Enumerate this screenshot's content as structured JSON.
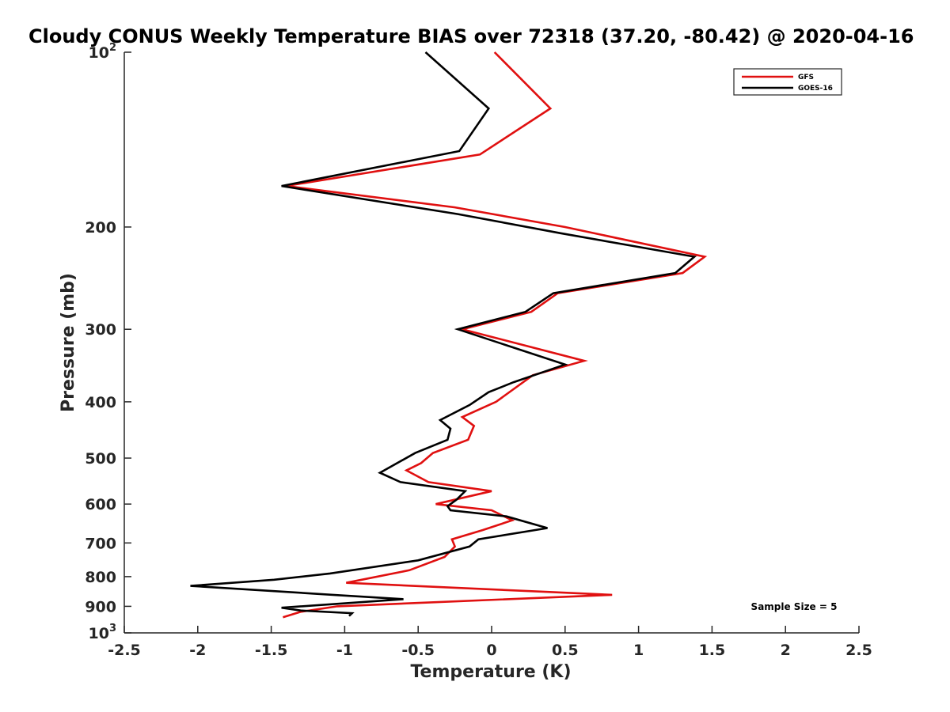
{
  "chart_data": {
    "type": "line",
    "title": "Cloudy CONUS Weekly Temperature BIAS over 72318 (37.20, -80.42) @ 2020-04-16",
    "xlabel": "Temperature (K)",
    "ylabel": "Pressure (mb)",
    "xlim": [
      -2.5,
      2.5
    ],
    "ylim": [
      100,
      1000
    ],
    "y_scale": "log",
    "y_reversed": true,
    "x_ticks": [
      "-2.5",
      "-2",
      "-1.5",
      "-1",
      "-0.5",
      "0",
      "0.5",
      "1",
      "1.5",
      "2",
      "2.5"
    ],
    "y_ticks": [
      {
        "value": 100,
        "base": "10",
        "exp": "2"
      },
      {
        "value": 200,
        "label": "200"
      },
      {
        "value": 300,
        "label": "300"
      },
      {
        "value": 400,
        "label": "400"
      },
      {
        "value": 500,
        "label": "500"
      },
      {
        "value": 600,
        "label": "600"
      },
      {
        "value": 700,
        "label": "700"
      },
      {
        "value": 800,
        "label": "800"
      },
      {
        "value": 900,
        "label": "900"
      },
      {
        "value": 1000,
        "base": "10",
        "exp": "3"
      }
    ],
    "series": [
      {
        "name": "GFS",
        "color": "#e01010",
        "points": [
          [
            0.02,
            100
          ],
          [
            0.4,
            125
          ],
          [
            -0.08,
            150
          ],
          [
            -1.4,
            170
          ],
          [
            -0.25,
            185
          ],
          [
            0.5,
            200
          ],
          [
            1.45,
            225
          ],
          [
            1.3,
            240
          ],
          [
            0.45,
            260
          ],
          [
            0.27,
            280
          ],
          [
            -0.2,
            300
          ],
          [
            0.63,
            340
          ],
          [
            0.28,
            360
          ],
          [
            0.03,
            400
          ],
          [
            -0.2,
            425
          ],
          [
            -0.12,
            440
          ],
          [
            -0.16,
            465
          ],
          [
            -0.4,
            490
          ],
          [
            -0.48,
            510
          ],
          [
            -0.58,
            525
          ],
          [
            -0.43,
            550
          ],
          [
            0.0,
            570
          ],
          [
            -0.38,
            600
          ],
          [
            0.0,
            615
          ],
          [
            0.14,
            640
          ],
          [
            -0.06,
            665
          ],
          [
            -0.27,
            690
          ],
          [
            -0.25,
            710
          ],
          [
            -0.32,
            740
          ],
          [
            -0.56,
            780
          ],
          [
            -0.99,
            820
          ],
          [
            0.38,
            850
          ],
          [
            0.82,
            860
          ],
          [
            -1.05,
            900
          ],
          [
            -1.3,
            920
          ],
          [
            -1.42,
            940
          ]
        ]
      },
      {
        "name": "GOES-16",
        "color": "#000000",
        "points": [
          [
            -0.45,
            100
          ],
          [
            -0.02,
            125
          ],
          [
            -0.22,
            148
          ],
          [
            -1.43,
            170
          ],
          [
            -0.23,
            190
          ],
          [
            0.47,
            205
          ],
          [
            1.38,
            225
          ],
          [
            1.25,
            240
          ],
          [
            0.42,
            260
          ],
          [
            0.23,
            280
          ],
          [
            -0.23,
            300
          ],
          [
            0.5,
            345
          ],
          [
            0.15,
            370
          ],
          [
            -0.02,
            385
          ],
          [
            -0.15,
            405
          ],
          [
            -0.35,
            430
          ],
          [
            -0.28,
            445
          ],
          [
            -0.3,
            465
          ],
          [
            -0.52,
            490
          ],
          [
            -0.76,
            530
          ],
          [
            -0.62,
            550
          ],
          [
            -0.18,
            570
          ],
          [
            -0.24,
            590
          ],
          [
            -0.3,
            605
          ],
          [
            -0.28,
            615
          ],
          [
            0.1,
            630
          ],
          [
            0.38,
            660
          ],
          [
            -0.09,
            690
          ],
          [
            -0.15,
            710
          ],
          [
            -0.5,
            750
          ],
          [
            -1.1,
            790
          ],
          [
            -1.48,
            810
          ],
          [
            -2.05,
            830
          ],
          [
            -1.08,
            860
          ],
          [
            -0.6,
            875
          ],
          [
            -1.43,
            905
          ],
          [
            -1.3,
            915
          ],
          [
            -0.95,
            925
          ],
          [
            -0.97,
            935
          ]
        ]
      }
    ],
    "legend_position": "top-right",
    "annotation": "Sample Size = 5"
  }
}
